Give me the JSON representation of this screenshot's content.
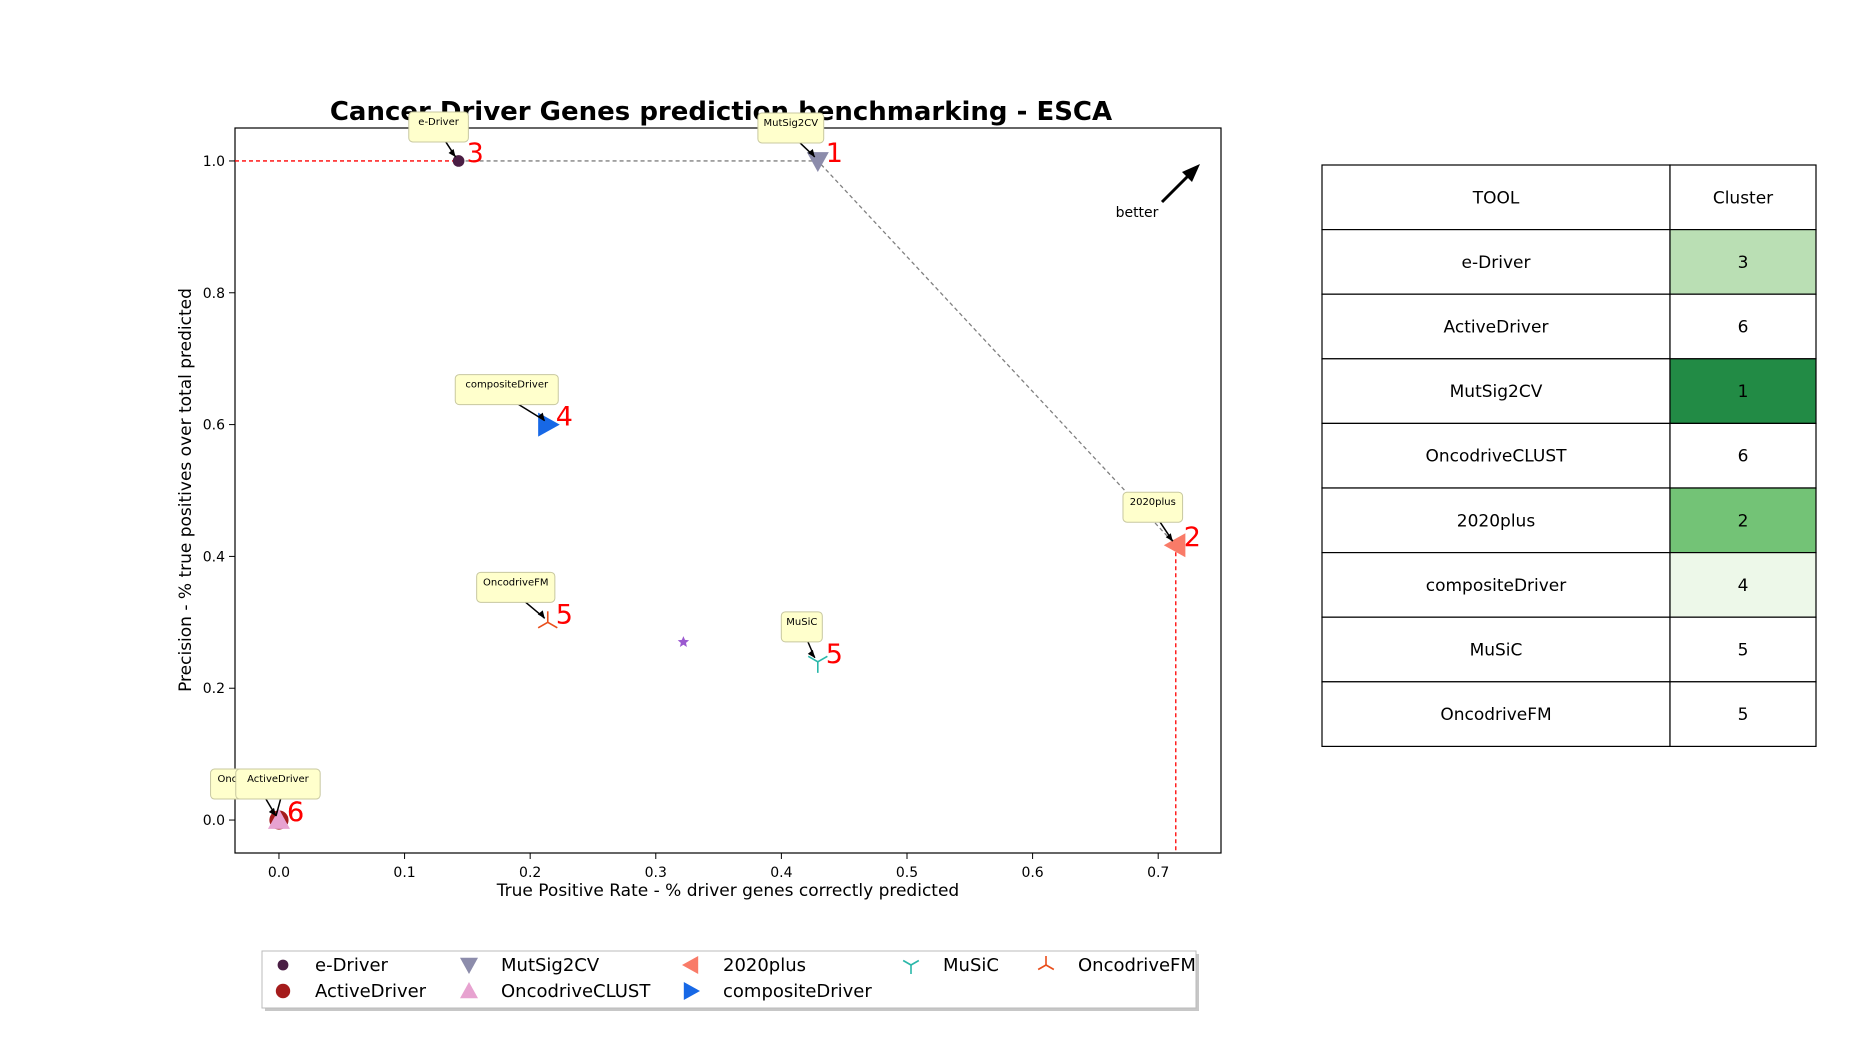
{
  "chart_data": {
    "type": "scatter",
    "title": "Cancer Driver Genes prediction benchmarking - ESCA",
    "xlabel": "True Positive Rate - % driver genes correctly predicted",
    "ylabel": "Precision - % true positives over total predicted",
    "xlim": [
      -0.035,
      0.75
    ],
    "ylim": [
      -0.05,
      1.05
    ],
    "xticks": [
      "0.0",
      "0.1",
      "0.2",
      "0.3",
      "0.4",
      "0.5",
      "0.6",
      "0.7"
    ],
    "yticks": [
      "0.0",
      "0.2",
      "0.4",
      "0.6",
      "0.8",
      "1.0"
    ],
    "grid": false,
    "better_label": "better",
    "series": [
      {
        "name": "e-Driver",
        "x": 0.143,
        "y": 1.0,
        "cluster": "3",
        "color": "#4a1e44",
        "marker": "circle-small"
      },
      {
        "name": "ActiveDriver",
        "x": 0.0,
        "y": 0.0,
        "cluster": "6",
        "color": "#a51c1c",
        "marker": "circle"
      },
      {
        "name": "MutSig2CV",
        "x": 0.429,
        "y": 1.0,
        "cluster": "1",
        "color": "#8c8cab",
        "marker": "triangle-down"
      },
      {
        "name": "OncodriveCLUST",
        "x": 0.0,
        "y": 0.0,
        "cluster": "6",
        "color": "#e7a2d0",
        "marker": "triangle-up"
      },
      {
        "name": "2020plus",
        "x": 0.714,
        "y": 0.417,
        "cluster": "2",
        "color": "#f97b68",
        "marker": "triangle-left"
      },
      {
        "name": "compositeDriver",
        "x": 0.214,
        "y": 0.6,
        "cluster": "4",
        "color": "#1768e6",
        "marker": "triangle-right"
      },
      {
        "name": "MuSiC",
        "x": 0.429,
        "y": 0.24,
        "cluster": "5",
        "color": "#2ab7a9",
        "marker": "tri-down"
      },
      {
        "name": "OncodriveFM",
        "x": 0.214,
        "y": 0.3,
        "cluster": "5",
        "color": "#e94e1b",
        "marker": "tri-up"
      }
    ],
    "average_point": {
      "x": 0.322,
      "y": 0.27,
      "color": "#9b59d0"
    },
    "pareto_frontier": [
      [
        0.143,
        1.0
      ],
      [
        0.429,
        1.0
      ],
      [
        0.714,
        0.417
      ]
    ],
    "legend_placement": "bottom-center"
  },
  "table": {
    "headers": [
      "TOOL",
      "Cluster"
    ],
    "rows": [
      {
        "tool": "e-Driver",
        "cluster": "3",
        "color": "#badfb4"
      },
      {
        "tool": "ActiveDriver",
        "cluster": "6",
        "color": "#ffffff"
      },
      {
        "tool": "MutSig2CV",
        "cluster": "1",
        "color": "#228b45"
      },
      {
        "tool": "OncodriveCLUST",
        "cluster": "6",
        "color": "#ffffff"
      },
      {
        "tool": "2020plus",
        "cluster": "2",
        "color": "#73c376"
      },
      {
        "tool": "compositeDriver",
        "cluster": "4",
        "color": "#edf8e9"
      },
      {
        "tool": "MuSiC",
        "cluster": "5",
        "color": "#ffffff"
      },
      {
        "tool": "OncodriveFM",
        "cluster": "5",
        "color": "#ffffff"
      }
    ]
  }
}
